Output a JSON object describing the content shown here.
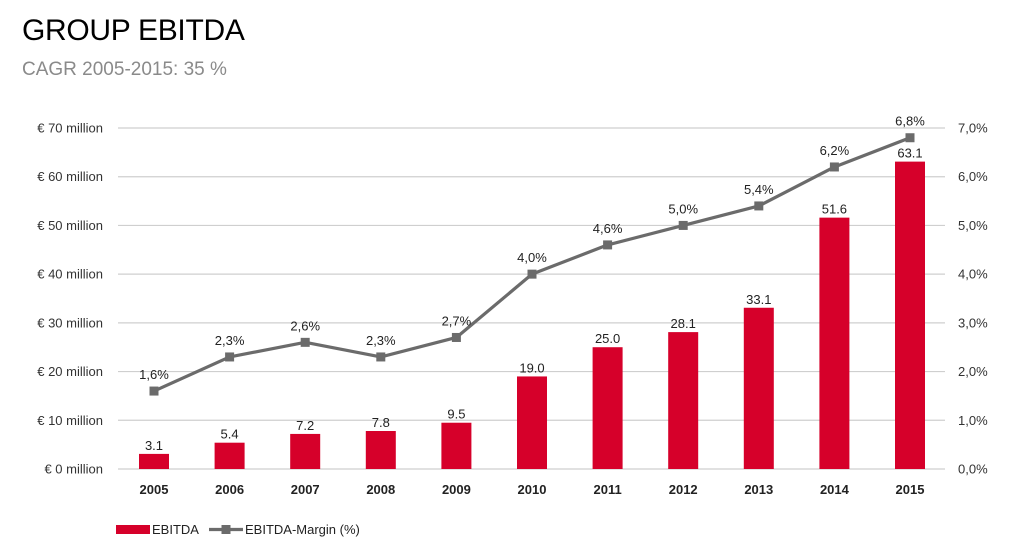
{
  "header": {
    "title": "GROUP EBITDA",
    "subtitle": "CAGR 2005-2015: 35 %"
  },
  "colors": {
    "bar": "#d6002a",
    "line": "#6b6b6b",
    "grid": "#cfcfcf",
    "subtitle": "#8a8a8a"
  },
  "chart_data": {
    "type": "bar",
    "categories": [
      "2005",
      "2006",
      "2007",
      "2008",
      "2009",
      "2010",
      "2011",
      "2012",
      "2013",
      "2014",
      "2015"
    ],
    "series": [
      {
        "name": "EBITDA",
        "type": "bar",
        "axis": "left",
        "values": [
          3.1,
          5.4,
          7.2,
          7.8,
          9.5,
          19.0,
          25.0,
          28.1,
          33.1,
          51.6,
          63.1
        ],
        "labels": [
          "3.1",
          "5.4",
          "7.2",
          "7.8",
          "9.5",
          "19.0",
          "25.0",
          "28.1",
          "33.1",
          "51.6",
          "63.1"
        ]
      },
      {
        "name": "EBITDA-Margin (%)",
        "type": "line",
        "axis": "right",
        "values": [
          1.6,
          2.3,
          2.6,
          2.3,
          2.7,
          4.0,
          4.6,
          5.0,
          5.4,
          6.2,
          6.8
        ],
        "labels": [
          "1,6%",
          "2,3%",
          "2,6%",
          "2,3%",
          "2,7%",
          "4,0%",
          "4,6%",
          "5,0%",
          "5,4%",
          "6,2%",
          "6,8%"
        ]
      }
    ],
    "y_left": {
      "ylim": [
        0,
        70
      ],
      "ticks": [
        0,
        10,
        20,
        30,
        40,
        50,
        60,
        70
      ],
      "tick_labels": [
        "€ 0 million",
        "€ 10 million",
        "€ 20 million",
        "€ 30 million",
        "€ 40 million",
        "€ 50 million",
        "€ 60 million",
        "€ 70 million"
      ]
    },
    "y_right": {
      "ylim": [
        0,
        7
      ],
      "ticks": [
        0,
        1,
        2,
        3,
        4,
        5,
        6,
        7
      ],
      "tick_labels": [
        "0,0%",
        "1,0%",
        "2,0%",
        "3,0%",
        "4,0%",
        "5,0%",
        "6,0%",
        "7,0%"
      ]
    },
    "grid": true,
    "legend_position": "bottom-left"
  }
}
